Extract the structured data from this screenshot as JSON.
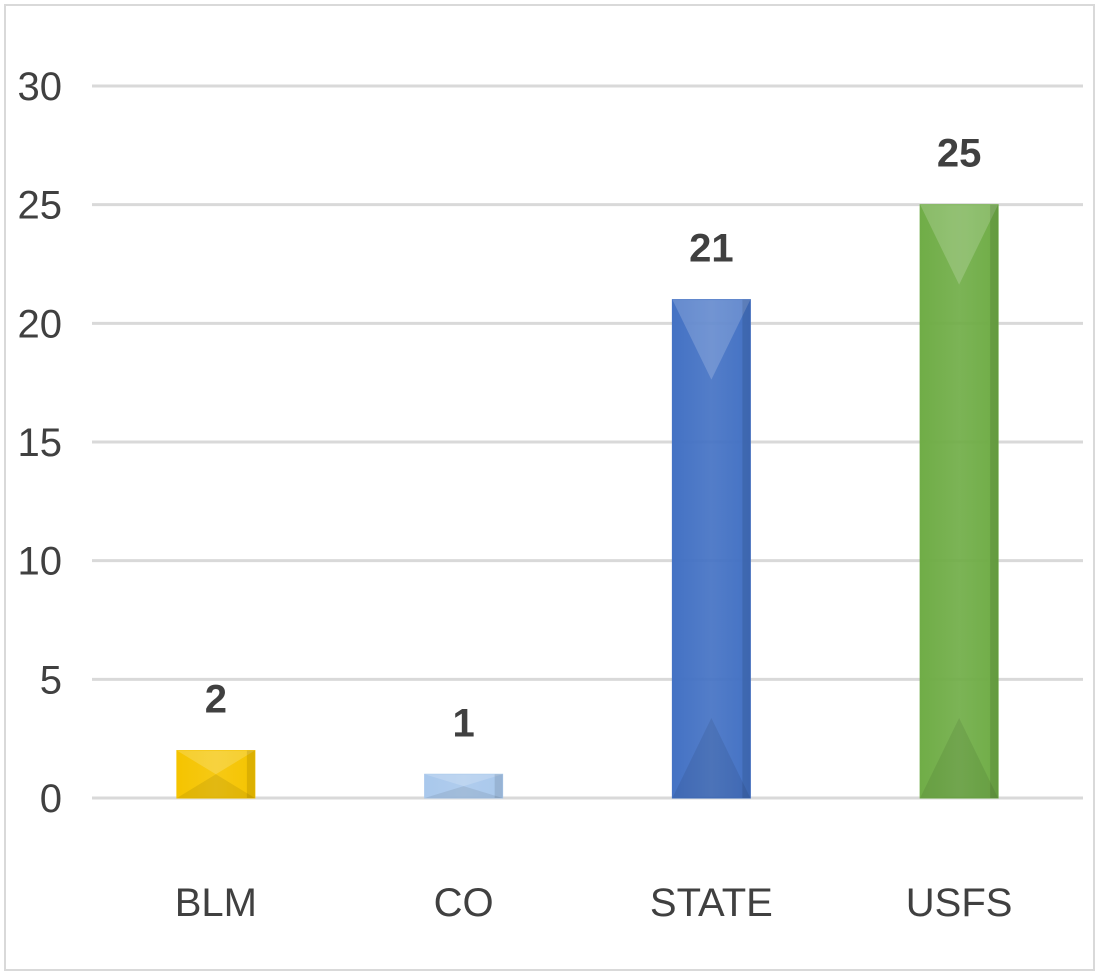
{
  "chart_data": {
    "type": "bar",
    "title": "",
    "xlabel": "",
    "ylabel": "",
    "categories": [
      "BLM",
      "CO",
      "STATE",
      "USFS"
    ],
    "values": [
      2,
      1,
      21,
      25
    ],
    "data_labels": [
      "2",
      "1",
      "21",
      "25"
    ],
    "ylim": [
      0,
      30
    ],
    "yticks": [
      0,
      5,
      10,
      15,
      20,
      25,
      30
    ],
    "ytick_labels": [
      "0",
      "5",
      "10",
      "15",
      "20",
      "25",
      "30"
    ],
    "grid": true,
    "legend": "none",
    "colors": [
      "#f5c400",
      "#a9c8ec",
      "#4472c4",
      "#70ad47"
    ]
  }
}
